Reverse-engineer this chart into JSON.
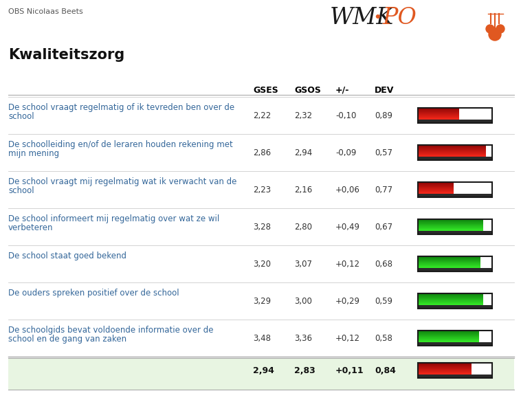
{
  "title": "Kwaliteitszorg",
  "header_school": "OBS Nicolaas Beets",
  "columns": [
    "GSES",
    "GSOS",
    "+/-",
    "DEV"
  ],
  "rows": [
    {
      "label": "De school vraagt regelmatig of ik tevreden ben over de school",
      "gses": "2,22",
      "gsos": "2,32",
      "diff": "-0,10",
      "dev": "0,89",
      "bar_color": "red",
      "bar_fill": 0.56,
      "has_white_space": true
    },
    {
      "label": "De schoolleiding en/of de leraren houden rekening met mijn mening",
      "gses": "2,86",
      "gsos": "2,94",
      "diff": "-0,09",
      "dev": "0,57",
      "bar_color": "red",
      "bar_fill": 0.92,
      "has_white_space": false
    },
    {
      "label": "De school vraagt mij regelmatig wat ik verwacht van de school",
      "gses": "2,23",
      "gsos": "2,16",
      "diff": "+0,06",
      "dev": "0,77",
      "bar_color": "red",
      "bar_fill": 0.48,
      "has_white_space": true
    },
    {
      "label": "De school informeert mij regelmatig over wat ze wil verbeteren",
      "gses": "3,28",
      "gsos": "2,80",
      "diff": "+0,49",
      "dev": "0,67",
      "bar_color": "green",
      "bar_fill": 0.88,
      "has_white_space": false
    },
    {
      "label": "De school staat goed bekend",
      "gses": "3,20",
      "gsos": "3,07",
      "diff": "+0,12",
      "dev": "0,68",
      "bar_color": "green",
      "bar_fill": 0.84,
      "has_white_space": false
    },
    {
      "label": "De ouders spreken positief over de school",
      "gses": "3,29",
      "gsos": "3,00",
      "diff": "+0,29",
      "dev": "0,59",
      "bar_color": "green",
      "bar_fill": 0.88,
      "has_white_space": false
    },
    {
      "label": "De schoolgids bevat voldoende informatie over de school en de gang van zaken",
      "gses": "3,48",
      "gsos": "3,36",
      "diff": "+0,12",
      "dev": "0,58",
      "bar_color": "green",
      "bar_fill": 0.82,
      "has_white_space": false
    }
  ],
  "summary": {
    "gses": "2,94",
    "gsos": "2,83",
    "diff": "+0,11",
    "dev": "0,84",
    "bar_color": "red",
    "bar_fill": 0.72,
    "bg_color": "#e8f5e2"
  },
  "bg_color": "#ffffff",
  "header_line_color": "#aaaaaa",
  "row_line_color": "#cccccc",
  "label_color": "#336699",
  "col_header_color": "#000000",
  "wmk_color": "#1a1a1a",
  "po_color": "#e05820",
  "dot_color": "#e05820"
}
